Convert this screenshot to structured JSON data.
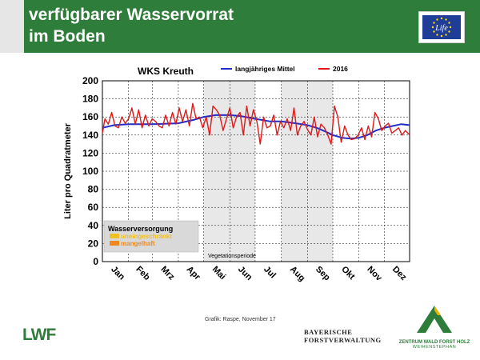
{
  "slide": {
    "title_line1": "verfügbarer Wasservorrat",
    "title_line2": "im Boden",
    "credit": "Grafik: Raspe, November 17",
    "lwf_logo": "LWF",
    "eu_logo": "Life",
    "bayern_line1": "BAYERISCHE",
    "bayern_line2": "FORSTVERWALTUNG",
    "zentrum_line1": "ZENTRUM WALD FORST HOLZ",
    "zentrum_line2": "WEIHENSTEPHAN",
    "colors": {
      "header": "#2e7d3a",
      "eu_blue": "#1f3c96",
      "eu_star": "#ffdd00"
    }
  },
  "chart_data": {
    "type": "line",
    "title": "WKS Kreuth",
    "ylabel": "Liter pro Quadratmeter",
    "xlabel": "",
    "ylim": [
      0,
      200
    ],
    "yticks": [
      0,
      20,
      40,
      60,
      80,
      100,
      120,
      140,
      160,
      180,
      200
    ],
    "xlim": [
      1,
      365
    ],
    "months": [
      "Jan",
      "Feb",
      "Mrz",
      "Apr",
      "Mai",
      "Jun",
      "Jul",
      "Aug",
      "Sep",
      "Okt",
      "Nov",
      "Dez"
    ],
    "month_starts": [
      1,
      32,
      60,
      91,
      121,
      152,
      182,
      213,
      244,
      274,
      305,
      335
    ],
    "grid": true,
    "legend_position": "top",
    "shaded_bands": [
      {
        "start": 121,
        "end": 182,
        "color": "#e8e8e8"
      },
      {
        "start": 213,
        "end": 274,
        "color": "#e8e8e8"
      }
    ],
    "shaded_band_label": "Vegetationsperiode",
    "series": [
      {
        "name": "langjähriges Mittel",
        "color": "#1f2fcc",
        "x": [
          1,
          15,
          32,
          60,
          91,
          110,
          121,
          135,
          152,
          165,
          182,
          200,
          213,
          230,
          244,
          255,
          265,
          274,
          285,
          295,
          305,
          315,
          325,
          335,
          345,
          355,
          365
        ],
        "y": [
          148,
          151,
          152,
          152,
          153,
          157,
          160,
          162,
          162,
          161,
          158,
          155,
          155,
          153,
          151,
          148,
          144,
          140,
          137,
          136,
          137,
          140,
          145,
          148,
          150,
          152,
          151
        ]
      },
      {
        "name": "2016",
        "color": "#e01818",
        "x": [
          1,
          4,
          8,
          12,
          16,
          20,
          24,
          28,
          32,
          36,
          40,
          44,
          48,
          52,
          56,
          60,
          64,
          68,
          72,
          76,
          80,
          84,
          88,
          92,
          96,
          100,
          104,
          108,
          112,
          116,
          120,
          124,
          128,
          132,
          136,
          140,
          144,
          148,
          152,
          156,
          160,
          164,
          168,
          172,
          176,
          180,
          184,
          188,
          192,
          196,
          200,
          204,
          208,
          212,
          216,
          220,
          224,
          228,
          232,
          236,
          240,
          244,
          248,
          252,
          256,
          260,
          264,
          268,
          272,
          276,
          280,
          284,
          288,
          292,
          296,
          300,
          304,
          308,
          312,
          316,
          320,
          324,
          328,
          332,
          336,
          340,
          344,
          348,
          352,
          356,
          360,
          365
        ],
        "y": [
          142,
          158,
          152,
          165,
          150,
          148,
          160,
          153,
          158,
          170,
          152,
          168,
          148,
          162,
          150,
          158,
          155,
          150,
          148,
          162,
          150,
          165,
          152,
          170,
          155,
          168,
          150,
          175,
          158,
          160,
          148,
          160,
          140,
          172,
          168,
          162,
          145,
          158,
          170,
          148,
          160,
          165,
          140,
          172,
          150,
          168,
          155,
          130,
          160,
          148,
          150,
          162,
          140,
          155,
          148,
          158,
          145,
          170,
          140,
          150,
          155,
          146,
          140,
          160,
          138,
          152,
          148,
          140,
          130,
          172,
          160,
          132,
          150,
          140,
          135,
          136,
          140,
          148,
          135,
          150,
          138,
          165,
          158,
          145,
          150,
          153,
          142,
          145,
          148,
          140,
          145,
          140
        ]
      }
    ],
    "inset_legend": {
      "title": "Wasserversorgung",
      "items": [
        {
          "label": "uneingeschränkt",
          "color": "#f0c020"
        },
        {
          "label": "mangelhaft",
          "color": "#f08a20"
        }
      ]
    }
  }
}
